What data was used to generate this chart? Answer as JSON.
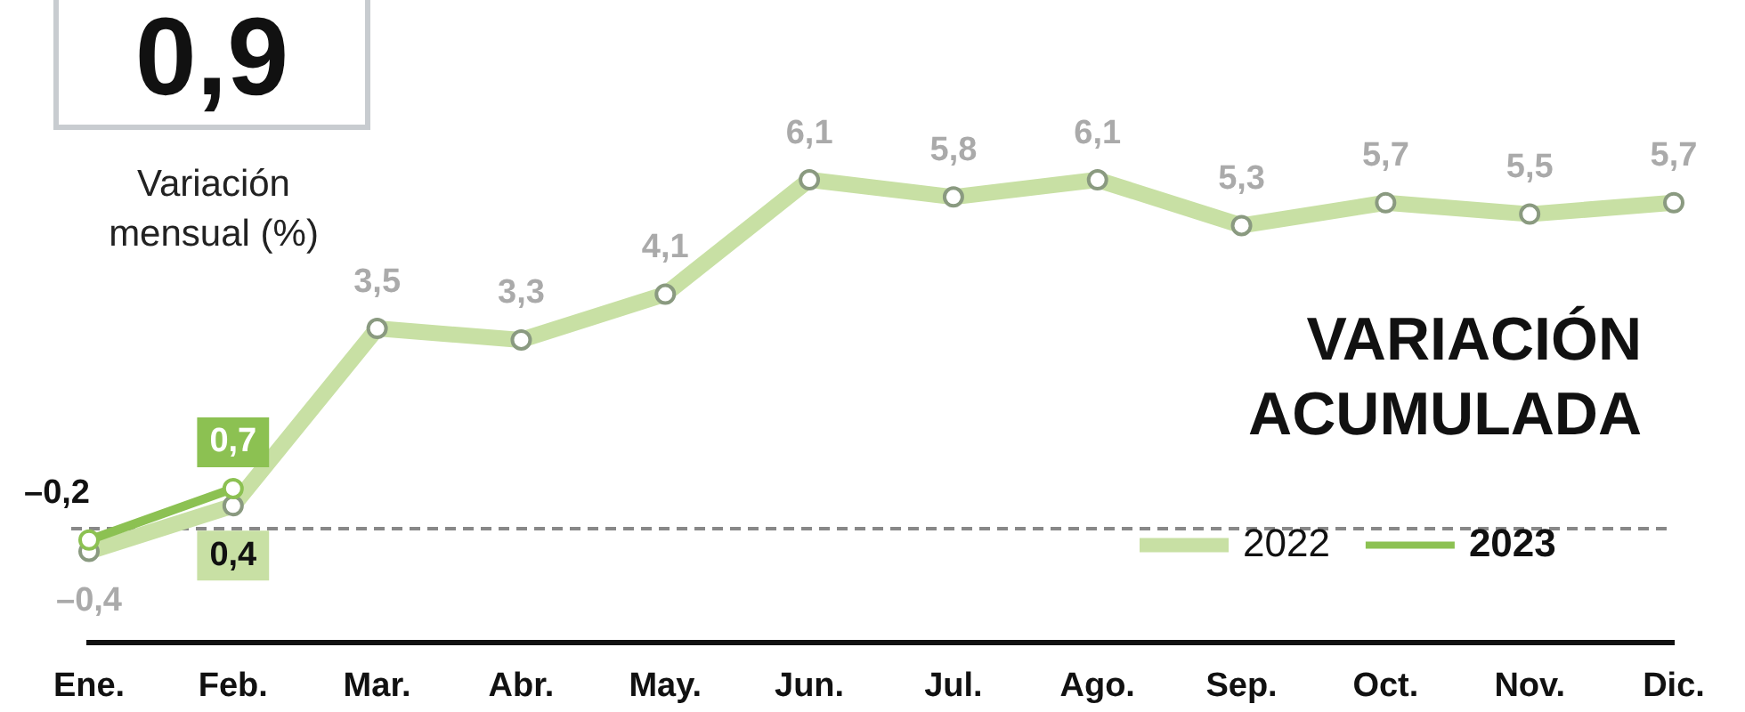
{
  "chart_data": {
    "type": "line",
    "title": "VARIACIÓN ACUMULADA",
    "annotations": [
      "0,9",
      "Variación mensual (%)"
    ],
    "categories": [
      "Ene.",
      "Feb.",
      "Mar.",
      "Abr.",
      "May.",
      "Jun.",
      "Jul.",
      "Ago.",
      "Sep.",
      "Oct.",
      "Nov.",
      "Dic."
    ],
    "series": [
      {
        "name": "2022",
        "color": "#c8e0a4",
        "values": [
          -0.4,
          0.4,
          3.5,
          3.3,
          4.1,
          6.1,
          5.8,
          6.1,
          5.3,
          5.7,
          5.5,
          5.7
        ],
        "value_labels": [
          "–0,4",
          "0,4",
          "3,5",
          "3,3",
          "4,1",
          "6,1",
          "5,8",
          "6,1",
          "5,3",
          "5,7",
          "5,5",
          "5,7"
        ]
      },
      {
        "name": "2023",
        "color": "#8cc152",
        "values": [
          -0.2,
          0.7,
          null,
          null,
          null,
          null,
          null,
          null,
          null,
          null,
          null,
          null
        ],
        "value_labels": [
          "–0,2",
          "0,7",
          null,
          null,
          null,
          null,
          null,
          null,
          null,
          null,
          null,
          null
        ]
      }
    ],
    "tick_labels": "x",
    "grid": false,
    "legend": "bottom right",
    "marker": "circle",
    "line_style": "solid",
    "ref_lines": [
      {
        "axis": "y",
        "value": 0,
        "color": "#888888",
        "line_style": "dashed"
      }
    ]
  }
}
